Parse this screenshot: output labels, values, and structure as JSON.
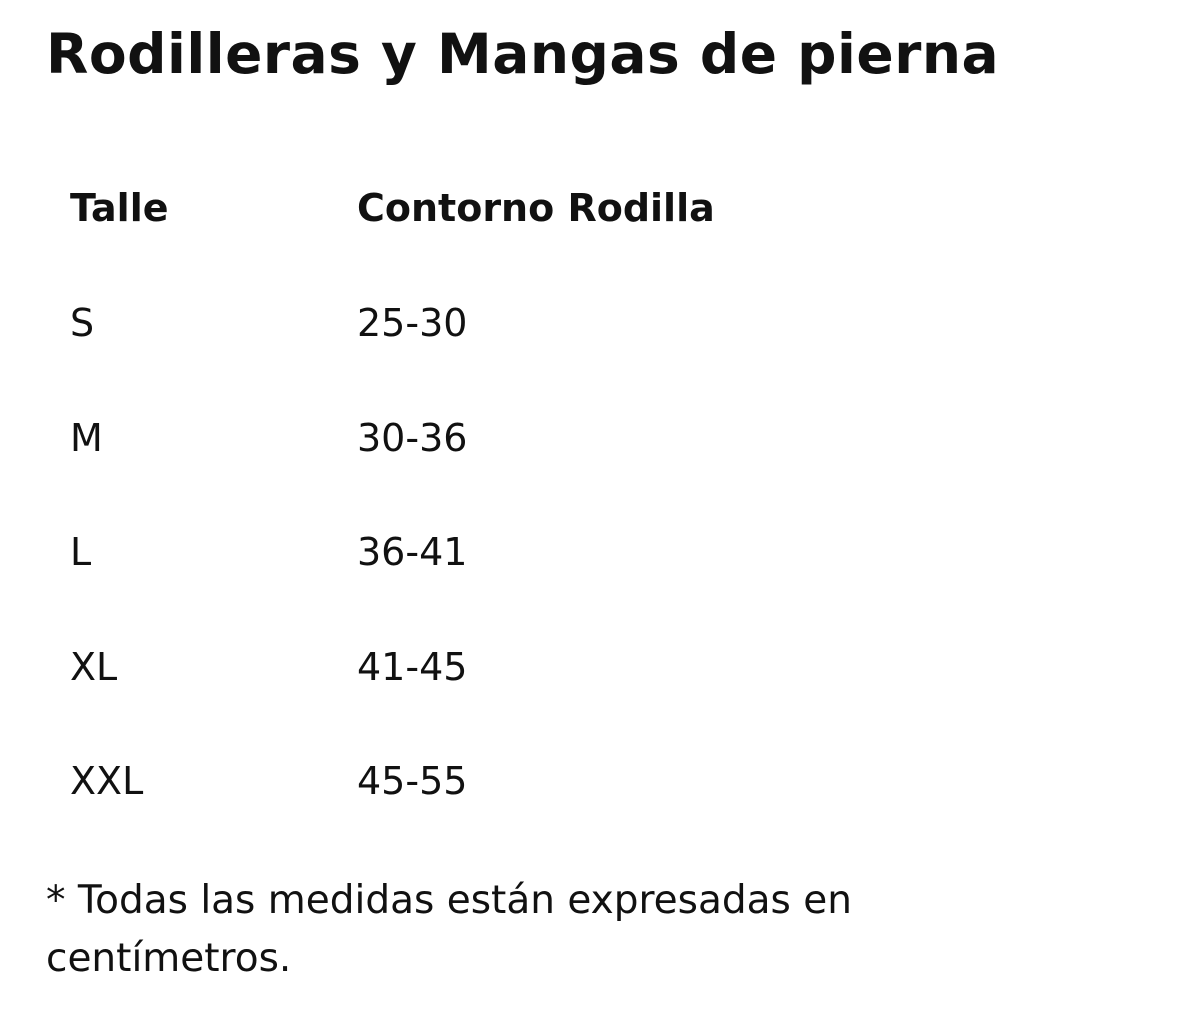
{
  "title": "Rodilleras y Mangas de pierna",
  "table": {
    "header": [
      "Talle",
      "Contorno Rodilla"
    ],
    "rows": [
      [
        "S",
        "25-30"
      ],
      [
        "M",
        "30-36"
      ],
      [
        "L",
        "36-41"
      ],
      [
        "XL",
        "41-45"
      ],
      [
        "XXL",
        "45-55"
      ]
    ]
  },
  "note": "* Todas las medidas están expresadas en centímetros."
}
